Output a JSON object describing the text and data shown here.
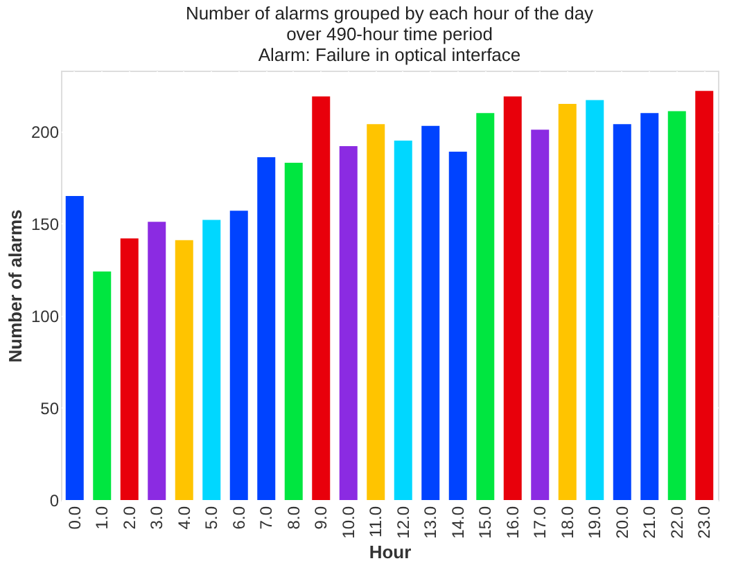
{
  "chart_data": {
    "type": "bar",
    "title": [
      "Number of alarms grouped by each hour of the day",
      "over 490-hour time period",
      "Alarm: Failure in optical interface"
    ],
    "xlabel": "Hour",
    "ylabel": "Number of alarms",
    "categories": [
      "0.0",
      "1.0",
      "2.0",
      "3.0",
      "4.0",
      "5.0",
      "6.0",
      "7.0",
      "8.0",
      "9.0",
      "10.0",
      "11.0",
      "12.0",
      "13.0",
      "14.0",
      "15.0",
      "16.0",
      "17.0",
      "18.0",
      "19.0",
      "20.0",
      "21.0",
      "22.0",
      "23.0"
    ],
    "values": [
      165,
      124,
      142,
      151,
      141,
      152,
      157,
      186,
      183,
      219,
      192,
      204,
      195,
      203,
      189,
      210,
      219,
      201,
      215,
      217,
      204,
      210,
      211,
      222
    ],
    "colors": [
      "#0043ff",
      "#00e640",
      "#e8000b",
      "#8b2be2",
      "#ffc400",
      "#00d7ff",
      "#0043ff",
      "#0043ff",
      "#00e640",
      "#e8000b",
      "#8b2be2",
      "#ffc400",
      "#00d7ff",
      "#0043ff",
      "#0043ff",
      "#00e640",
      "#e8000b",
      "#8b2be2",
      "#ffc400",
      "#00d7ff",
      "#0043ff",
      "#0043ff",
      "#00e640",
      "#e8000b"
    ],
    "ylim": [
      0,
      233
    ],
    "yticks": [
      0,
      50,
      100,
      150,
      200
    ],
    "grid": true
  }
}
